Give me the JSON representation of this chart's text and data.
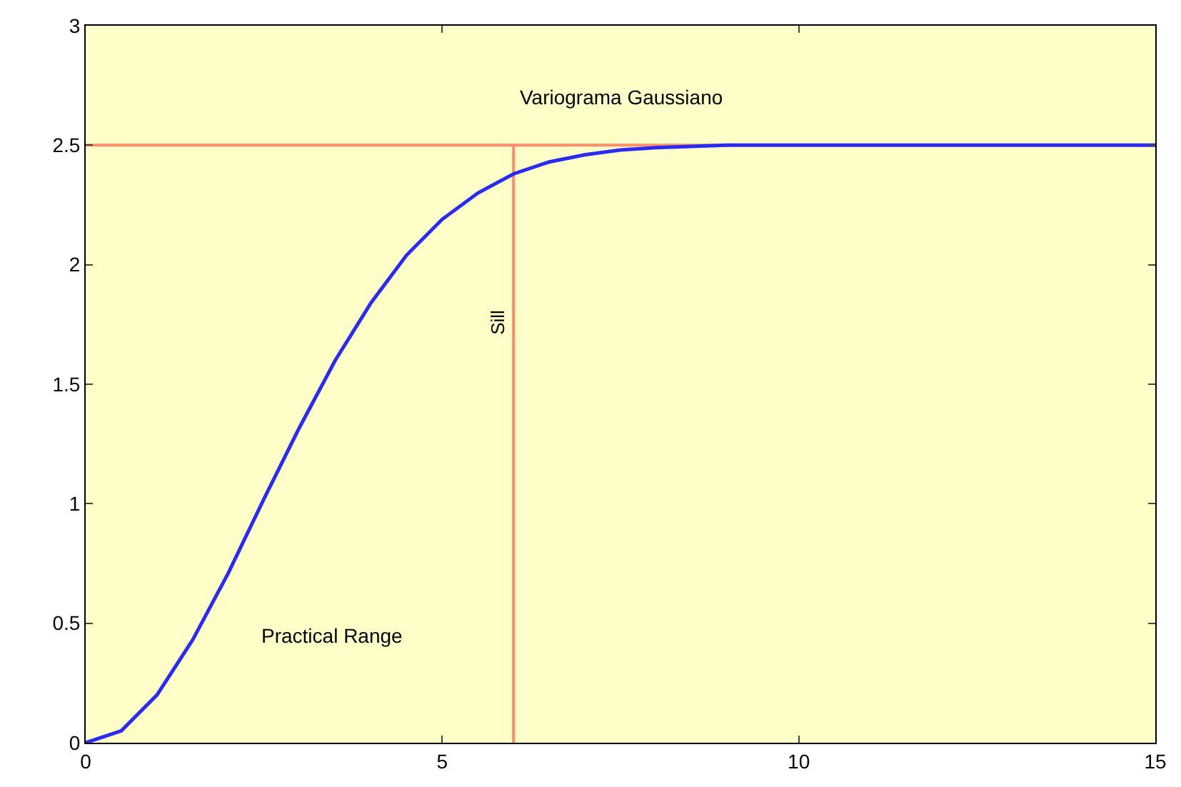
{
  "chart_data": {
    "type": "line",
    "x": [
      0,
      0.5,
      1,
      1.5,
      2,
      2.5,
      3,
      3.5,
      4,
      4.5,
      5,
      5.5,
      6,
      6.5,
      7,
      7.5,
      8,
      9,
      10,
      11,
      12,
      13,
      14,
      15
    ],
    "series": [
      {
        "color": "#2b2bf0",
        "values": [
          0,
          0.05,
          0.2,
          0.43,
          0.71,
          1.02,
          1.32,
          1.6,
          1.84,
          2.04,
          2.19,
          2.3,
          2.38,
          2.43,
          2.46,
          2.48,
          2.49,
          2.5,
          2.5,
          2.5,
          2.5,
          2.5,
          2.5,
          2.5
        ]
      }
    ],
    "xlim": [
      0,
      15
    ],
    "xticks": [
      0,
      5,
      10,
      15
    ],
    "ylim": [
      0,
      3
    ],
    "yticks": [
      0,
      0.5,
      1,
      1.5,
      2,
      2.5,
      3
    ],
    "ref_lines": [
      {
        "axis": "y",
        "value": 2.5,
        "label": null,
        "color": "#ff8c6a"
      },
      {
        "axis": "x",
        "value": 6,
        "label": "Sill",
        "color": "#ff8c6a"
      }
    ],
    "annotations": [
      "Variograma Gaussiano",
      "Practical Range"
    ],
    "grid": false,
    "marker": "none",
    "line_style": "solid"
  }
}
